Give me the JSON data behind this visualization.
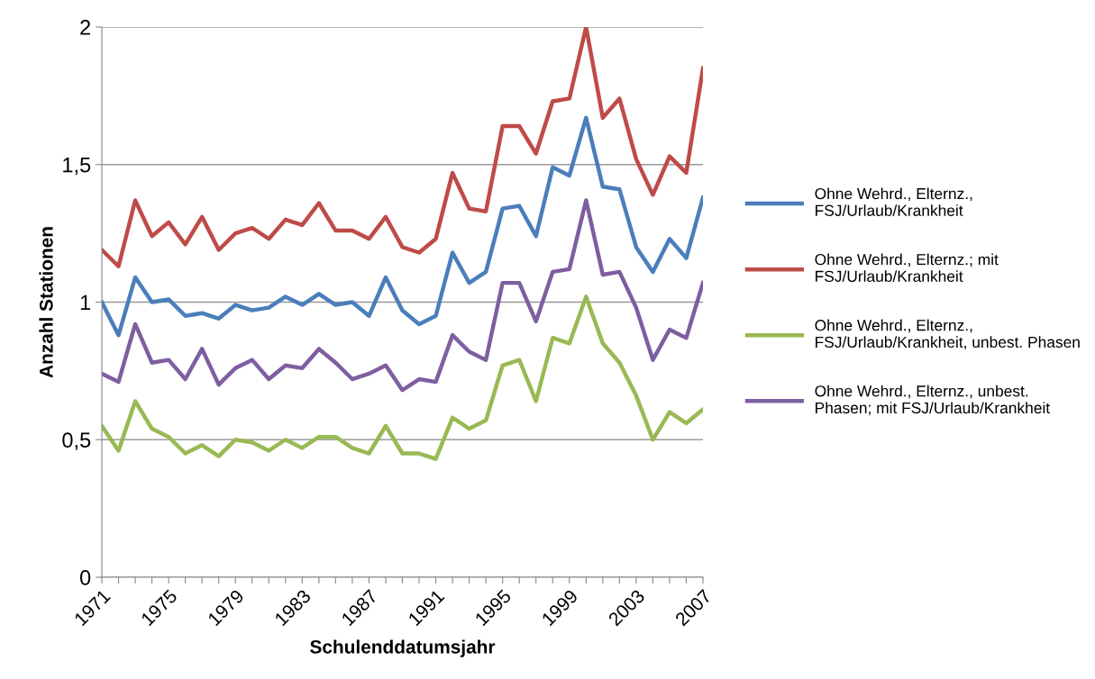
{
  "chart_data": {
    "type": "line",
    "xlabel": "Schulenddatumsjahr",
    "ylabel": "Anzahl Stationen",
    "categories": [
      "1971",
      null,
      null,
      null,
      "1975",
      null,
      null,
      null,
      "1979",
      null,
      null,
      null,
      "1983",
      null,
      null,
      null,
      "1987",
      null,
      null,
      null,
      "1991",
      null,
      null,
      null,
      "1995",
      null,
      null,
      null,
      "1999",
      null,
      null,
      null,
      "2003",
      null,
      null,
      null,
      "2007"
    ],
    "series": [
      {
        "name": "Ohne Wehrd., Elternz.,\nFSJ/Urlaub/Krankheit",
        "color": "#4a7ebb",
        "values": [
          1.0,
          0.88,
          1.09,
          1.0,
          1.01,
          0.95,
          0.96,
          0.94,
          0.99,
          0.97,
          0.98,
          1.02,
          0.99,
          1.03,
          0.99,
          1.0,
          0.95,
          1.09,
          0.97,
          0.92,
          0.95,
          1.18,
          1.07,
          1.11,
          1.34,
          1.35,
          1.24,
          1.49,
          1.46,
          1.67,
          1.42,
          1.41,
          1.2,
          1.11,
          1.23,
          1.16,
          1.38
        ]
      },
      {
        "name": "Ohne Wehrd., Elternz.; mit\nFSJ/Urlaub/Krankheit",
        "color": "#be4b48",
        "values": [
          1.19,
          1.13,
          1.37,
          1.24,
          1.29,
          1.21,
          1.31,
          1.19,
          1.25,
          1.27,
          1.23,
          1.3,
          1.28,
          1.36,
          1.26,
          1.26,
          1.23,
          1.31,
          1.2,
          1.18,
          1.23,
          1.47,
          1.34,
          1.33,
          1.64,
          1.64,
          1.54,
          1.73,
          1.74,
          2.0,
          1.67,
          1.74,
          1.52,
          1.39,
          1.53,
          1.47,
          1.85
        ]
      },
      {
        "name": "Ohne Wehrd., Elternz.,\nFSJ/Urlaub/Krankheit, unbest. Phasen",
        "color": "#98b954",
        "values": [
          0.55,
          0.46,
          0.64,
          0.54,
          0.51,
          0.45,
          0.48,
          0.44,
          0.5,
          0.49,
          0.46,
          0.5,
          0.47,
          0.51,
          0.51,
          0.47,
          0.45,
          0.55,
          0.45,
          0.45,
          0.43,
          0.58,
          0.54,
          0.57,
          0.77,
          0.79,
          0.64,
          0.87,
          0.85,
          1.02,
          0.85,
          0.78,
          0.66,
          0.5,
          0.6,
          0.56,
          0.61
        ]
      },
      {
        "name": "Ohne Wehrd., Elternz., unbest.\nPhasen; mit FSJ/Urlaub/Krankheit",
        "color": "#7d5fa0",
        "values": [
          0.74,
          0.71,
          0.92,
          0.78,
          0.79,
          0.72,
          0.83,
          0.7,
          0.76,
          0.79,
          0.72,
          0.77,
          0.76,
          0.83,
          0.78,
          0.72,
          0.74,
          0.77,
          0.68,
          0.72,
          0.71,
          0.88,
          0.82,
          0.79,
          1.07,
          1.07,
          0.93,
          1.11,
          1.12,
          1.37,
          1.1,
          1.11,
          0.98,
          0.79,
          0.9,
          0.87,
          1.07
        ]
      }
    ],
    "ylim": [
      0,
      2
    ],
    "yticks": [
      {
        "value": 0,
        "label": "0"
      },
      {
        "value": 0.5,
        "label": "0,5"
      },
      {
        "value": 1,
        "label": "1"
      },
      {
        "value": 1.5,
        "label": "1,5"
      },
      {
        "value": 2,
        "label": "2"
      }
    ],
    "grid": "y",
    "legend": "right",
    "marker": "none",
    "line_style": "solid"
  }
}
